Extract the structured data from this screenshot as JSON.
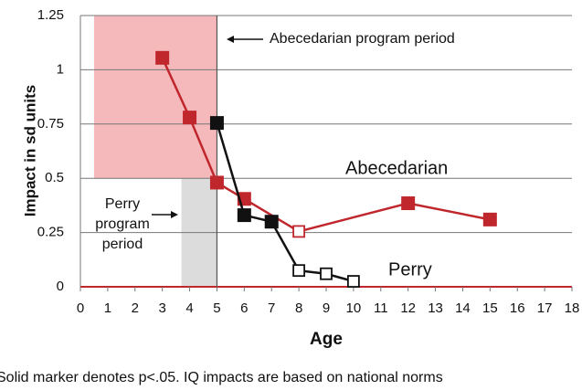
{
  "chart_data": {
    "type": "line",
    "ylabel": "Impact in sd units",
    "xlabel": "Age",
    "xlim": [
      0,
      18
    ],
    "ylim": [
      0,
      1.25
    ],
    "xticks": [
      0,
      1,
      2,
      3,
      4,
      5,
      6,
      7,
      8,
      9,
      10,
      11,
      12,
      13,
      14,
      15,
      16,
      17,
      18
    ],
    "yticks": [
      0,
      0.25,
      0.5,
      0.75,
      1,
      1.25
    ],
    "grid": true,
    "series": [
      {
        "name": "Abecedarian",
        "color": "#c0272d",
        "x": [
          3,
          4,
          5,
          6,
          8,
          12,
          15
        ],
        "values": [
          1.055,
          0.78,
          0.48,
          0.405,
          0.255,
          0.385,
          0.31
        ],
        "significant": [
          true,
          true,
          true,
          true,
          false,
          true,
          true
        ]
      },
      {
        "name": "Perry",
        "color": "#111111",
        "x": [
          5,
          6,
          7,
          8,
          9,
          10
        ],
        "values": [
          0.755,
          0.33,
          0.3,
          0.075,
          0.06,
          0.025
        ],
        "significant": [
          true,
          true,
          true,
          false,
          false,
          false
        ]
      }
    ],
    "regions": [
      {
        "x": [
          0.5,
          5
        ],
        "y": [
          0.5,
          1.25
        ],
        "color": "#f5b8bb"
      },
      {
        "x": [
          3.7,
          5
        ],
        "y": [
          0,
          0.5
        ],
        "color": "#dcdcdc"
      }
    ],
    "vlines": [
      5
    ],
    "annotations": [
      {
        "text": [
          "Abecedarian program period"
        ]
      },
      {
        "text": [
          "Perry",
          "program",
          "period"
        ]
      }
    ],
    "footnote": "Solid marker denotes p<.05. IQ impacts are based on national norms"
  }
}
